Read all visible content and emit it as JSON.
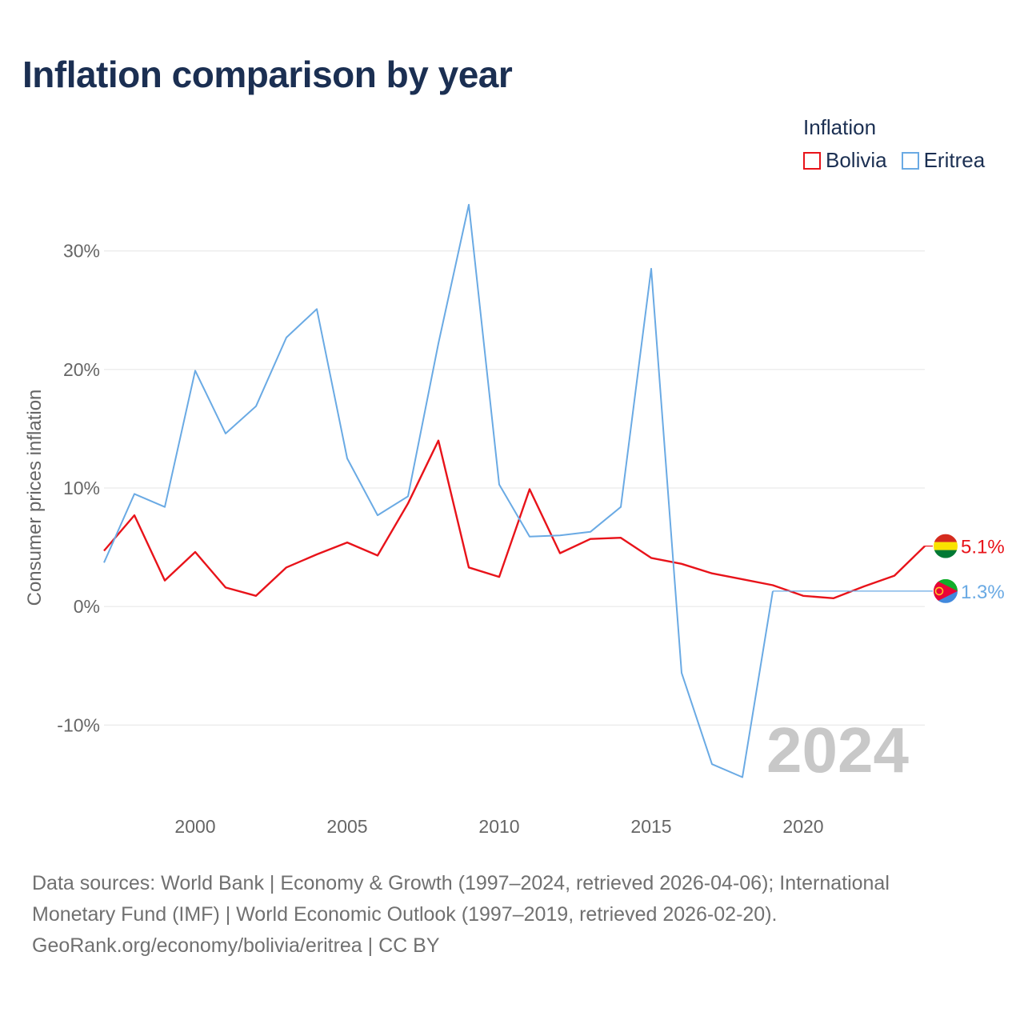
{
  "title": "Inflation comparison by year",
  "legend": {
    "title": "Inflation",
    "items": [
      {
        "label": "Bolivia",
        "color": "#e8131a"
      },
      {
        "label": "Eritrea",
        "color": "#6aaae4"
      }
    ]
  },
  "chart_data": {
    "type": "line",
    "title": "Inflation comparison by year",
    "xlabel": "",
    "ylabel": "Consumer prices inflation",
    "xlim": [
      1997,
      2024
    ],
    "ylim": [
      -17,
      37
    ],
    "x_ticks": [
      2000,
      2005,
      2010,
      2015,
      2020
    ],
    "y_ticks": [
      -10,
      0,
      10,
      20,
      30
    ],
    "y_tick_labels": [
      "-10%",
      "0%",
      "10%",
      "20%",
      "30%"
    ],
    "grid": true,
    "year_watermark": "2024",
    "x": [
      1997,
      1998,
      1999,
      2000,
      2001,
      2002,
      2003,
      2004,
      2005,
      2006,
      2007,
      2008,
      2009,
      2010,
      2011,
      2012,
      2013,
      2014,
      2015,
      2016,
      2017,
      2018,
      2019,
      2020,
      2021,
      2022,
      2023,
      2024
    ],
    "series": [
      {
        "name": "Bolivia",
        "color": "#e8131a",
        "values": [
          4.7,
          7.7,
          2.2,
          4.6,
          1.6,
          0.9,
          3.3,
          4.4,
          5.4,
          4.3,
          8.7,
          14.0,
          3.3,
          2.5,
          9.9,
          4.5,
          5.7,
          5.8,
          4.1,
          3.6,
          2.8,
          2.3,
          1.8,
          0.9,
          0.7,
          1.7,
          2.6,
          5.1
        ],
        "end_label": "5.1%"
      },
      {
        "name": "Eritrea",
        "color": "#6aaae4",
        "values": [
          3.7,
          9.5,
          8.4,
          19.9,
          14.6,
          16.9,
          22.7,
          25.1,
          12.5,
          7.7,
          9.3,
          22.2,
          33.9,
          10.3,
          5.9,
          6.0,
          6.3,
          8.4,
          28.5,
          -5.6,
          -13.3,
          -14.4,
          1.3,
          null,
          null,
          null,
          null,
          null
        ],
        "end_label": "1.3%"
      }
    ]
  },
  "footer": {
    "line1": "Data sources: World Bank | Economy & Growth (1997–2024, retrieved 2026-04-06); International",
    "line2": "Monetary Fund (IMF) | World Economic Outlook (1997–2019, retrieved 2026-02-20).",
    "line3": "GeoRank.org/economy/bolivia/eritrea | CC BY"
  }
}
